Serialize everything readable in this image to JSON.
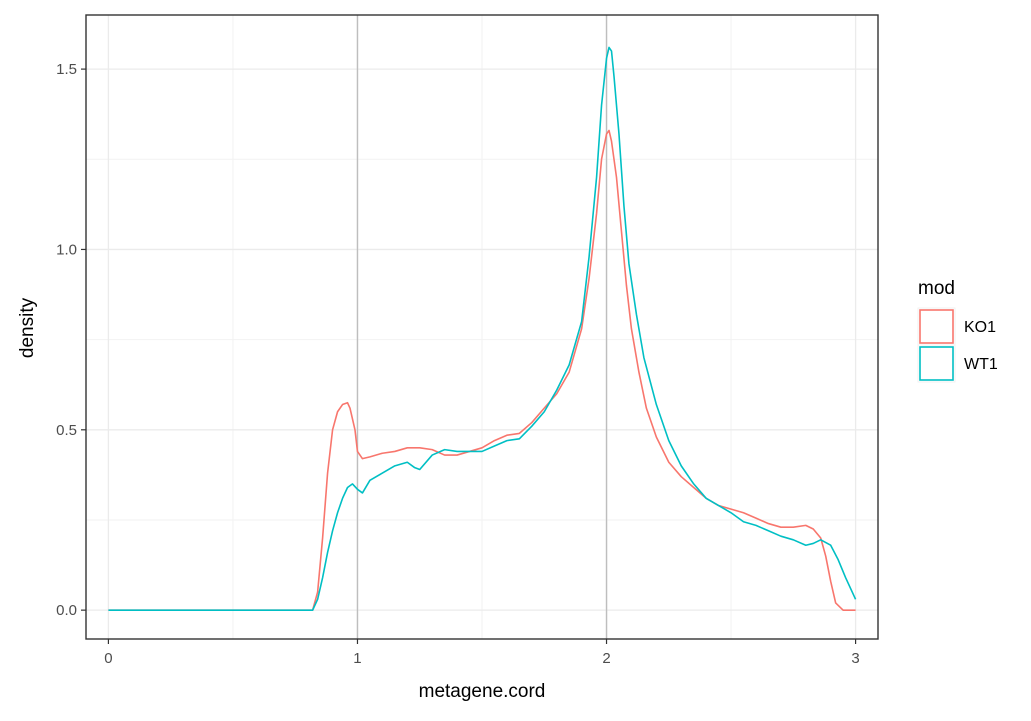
{
  "chart_data": {
    "type": "line",
    "title": "",
    "xlabel": "metagene.cord",
    "ylabel": "density",
    "xlim": [
      -0.09,
      3.09
    ],
    "ylim": [
      -0.08,
      1.65
    ],
    "x_ticks": [
      0,
      1,
      2,
      3
    ],
    "x_tick_labels": [
      "0",
      "1",
      "2",
      "3"
    ],
    "y_ticks": [
      0.0,
      0.5,
      1.0,
      1.5
    ],
    "y_tick_labels": [
      "0.0",
      "0.5",
      "1.0",
      "1.5"
    ],
    "grid": true,
    "vlines": [
      1,
      2
    ],
    "legend": {
      "title": "mod",
      "position": "right"
    },
    "series": [
      {
        "name": "KO1",
        "color": "#F8766D",
        "x": [
          0,
          0.5,
          0.82,
          0.84,
          0.86,
          0.88,
          0.9,
          0.92,
          0.94,
          0.96,
          0.97,
          0.99,
          1.0,
          1.02,
          1.05,
          1.1,
          1.15,
          1.2,
          1.25,
          1.3,
          1.35,
          1.4,
          1.45,
          1.5,
          1.55,
          1.6,
          1.65,
          1.7,
          1.75,
          1.8,
          1.85,
          1.9,
          1.93,
          1.96,
          1.98,
          2.0,
          2.01,
          2.02,
          2.04,
          2.06,
          2.08,
          2.1,
          2.13,
          2.16,
          2.2,
          2.25,
          2.3,
          2.35,
          2.4,
          2.45,
          2.5,
          2.55,
          2.6,
          2.65,
          2.7,
          2.75,
          2.8,
          2.83,
          2.86,
          2.88,
          2.9,
          2.92,
          2.95,
          3.0
        ],
        "y": [
          0.0,
          0.0,
          0.0,
          0.05,
          0.2,
          0.38,
          0.5,
          0.55,
          0.57,
          0.575,
          0.56,
          0.5,
          0.44,
          0.42,
          0.425,
          0.435,
          0.44,
          0.45,
          0.45,
          0.445,
          0.43,
          0.43,
          0.44,
          0.45,
          0.47,
          0.485,
          0.49,
          0.52,
          0.56,
          0.6,
          0.66,
          0.78,
          0.92,
          1.1,
          1.25,
          1.32,
          1.33,
          1.3,
          1.2,
          1.05,
          0.9,
          0.78,
          0.66,
          0.56,
          0.48,
          0.41,
          0.37,
          0.34,
          0.31,
          0.29,
          0.28,
          0.27,
          0.255,
          0.24,
          0.23,
          0.23,
          0.235,
          0.225,
          0.2,
          0.15,
          0.08,
          0.02,
          0.0,
          0.0
        ]
      },
      {
        "name": "WT1",
        "color": "#00BFC4",
        "x": [
          0,
          0.5,
          0.82,
          0.84,
          0.86,
          0.88,
          0.9,
          0.92,
          0.94,
          0.96,
          0.98,
          1.0,
          1.02,
          1.05,
          1.1,
          1.15,
          1.2,
          1.23,
          1.25,
          1.3,
          1.35,
          1.4,
          1.45,
          1.5,
          1.55,
          1.6,
          1.65,
          1.7,
          1.75,
          1.8,
          1.85,
          1.9,
          1.93,
          1.96,
          1.98,
          2.0,
          2.01,
          2.02,
          2.03,
          2.05,
          2.07,
          2.09,
          2.12,
          2.15,
          2.2,
          2.25,
          2.3,
          2.35,
          2.4,
          2.45,
          2.5,
          2.55,
          2.6,
          2.65,
          2.7,
          2.75,
          2.8,
          2.83,
          2.86,
          2.9,
          2.93,
          2.96,
          3.0
        ],
        "y": [
          0.0,
          0.0,
          0.0,
          0.03,
          0.09,
          0.16,
          0.22,
          0.27,
          0.31,
          0.34,
          0.35,
          0.335,
          0.325,
          0.36,
          0.38,
          0.4,
          0.41,
          0.395,
          0.39,
          0.43,
          0.445,
          0.44,
          0.44,
          0.44,
          0.455,
          0.47,
          0.475,
          0.51,
          0.55,
          0.61,
          0.68,
          0.8,
          0.98,
          1.2,
          1.4,
          1.53,
          1.56,
          1.55,
          1.48,
          1.32,
          1.12,
          0.96,
          0.82,
          0.7,
          0.57,
          0.47,
          0.4,
          0.35,
          0.31,
          0.29,
          0.27,
          0.245,
          0.235,
          0.22,
          0.205,
          0.195,
          0.18,
          0.185,
          0.195,
          0.18,
          0.14,
          0.09,
          0.03
        ]
      }
    ]
  }
}
